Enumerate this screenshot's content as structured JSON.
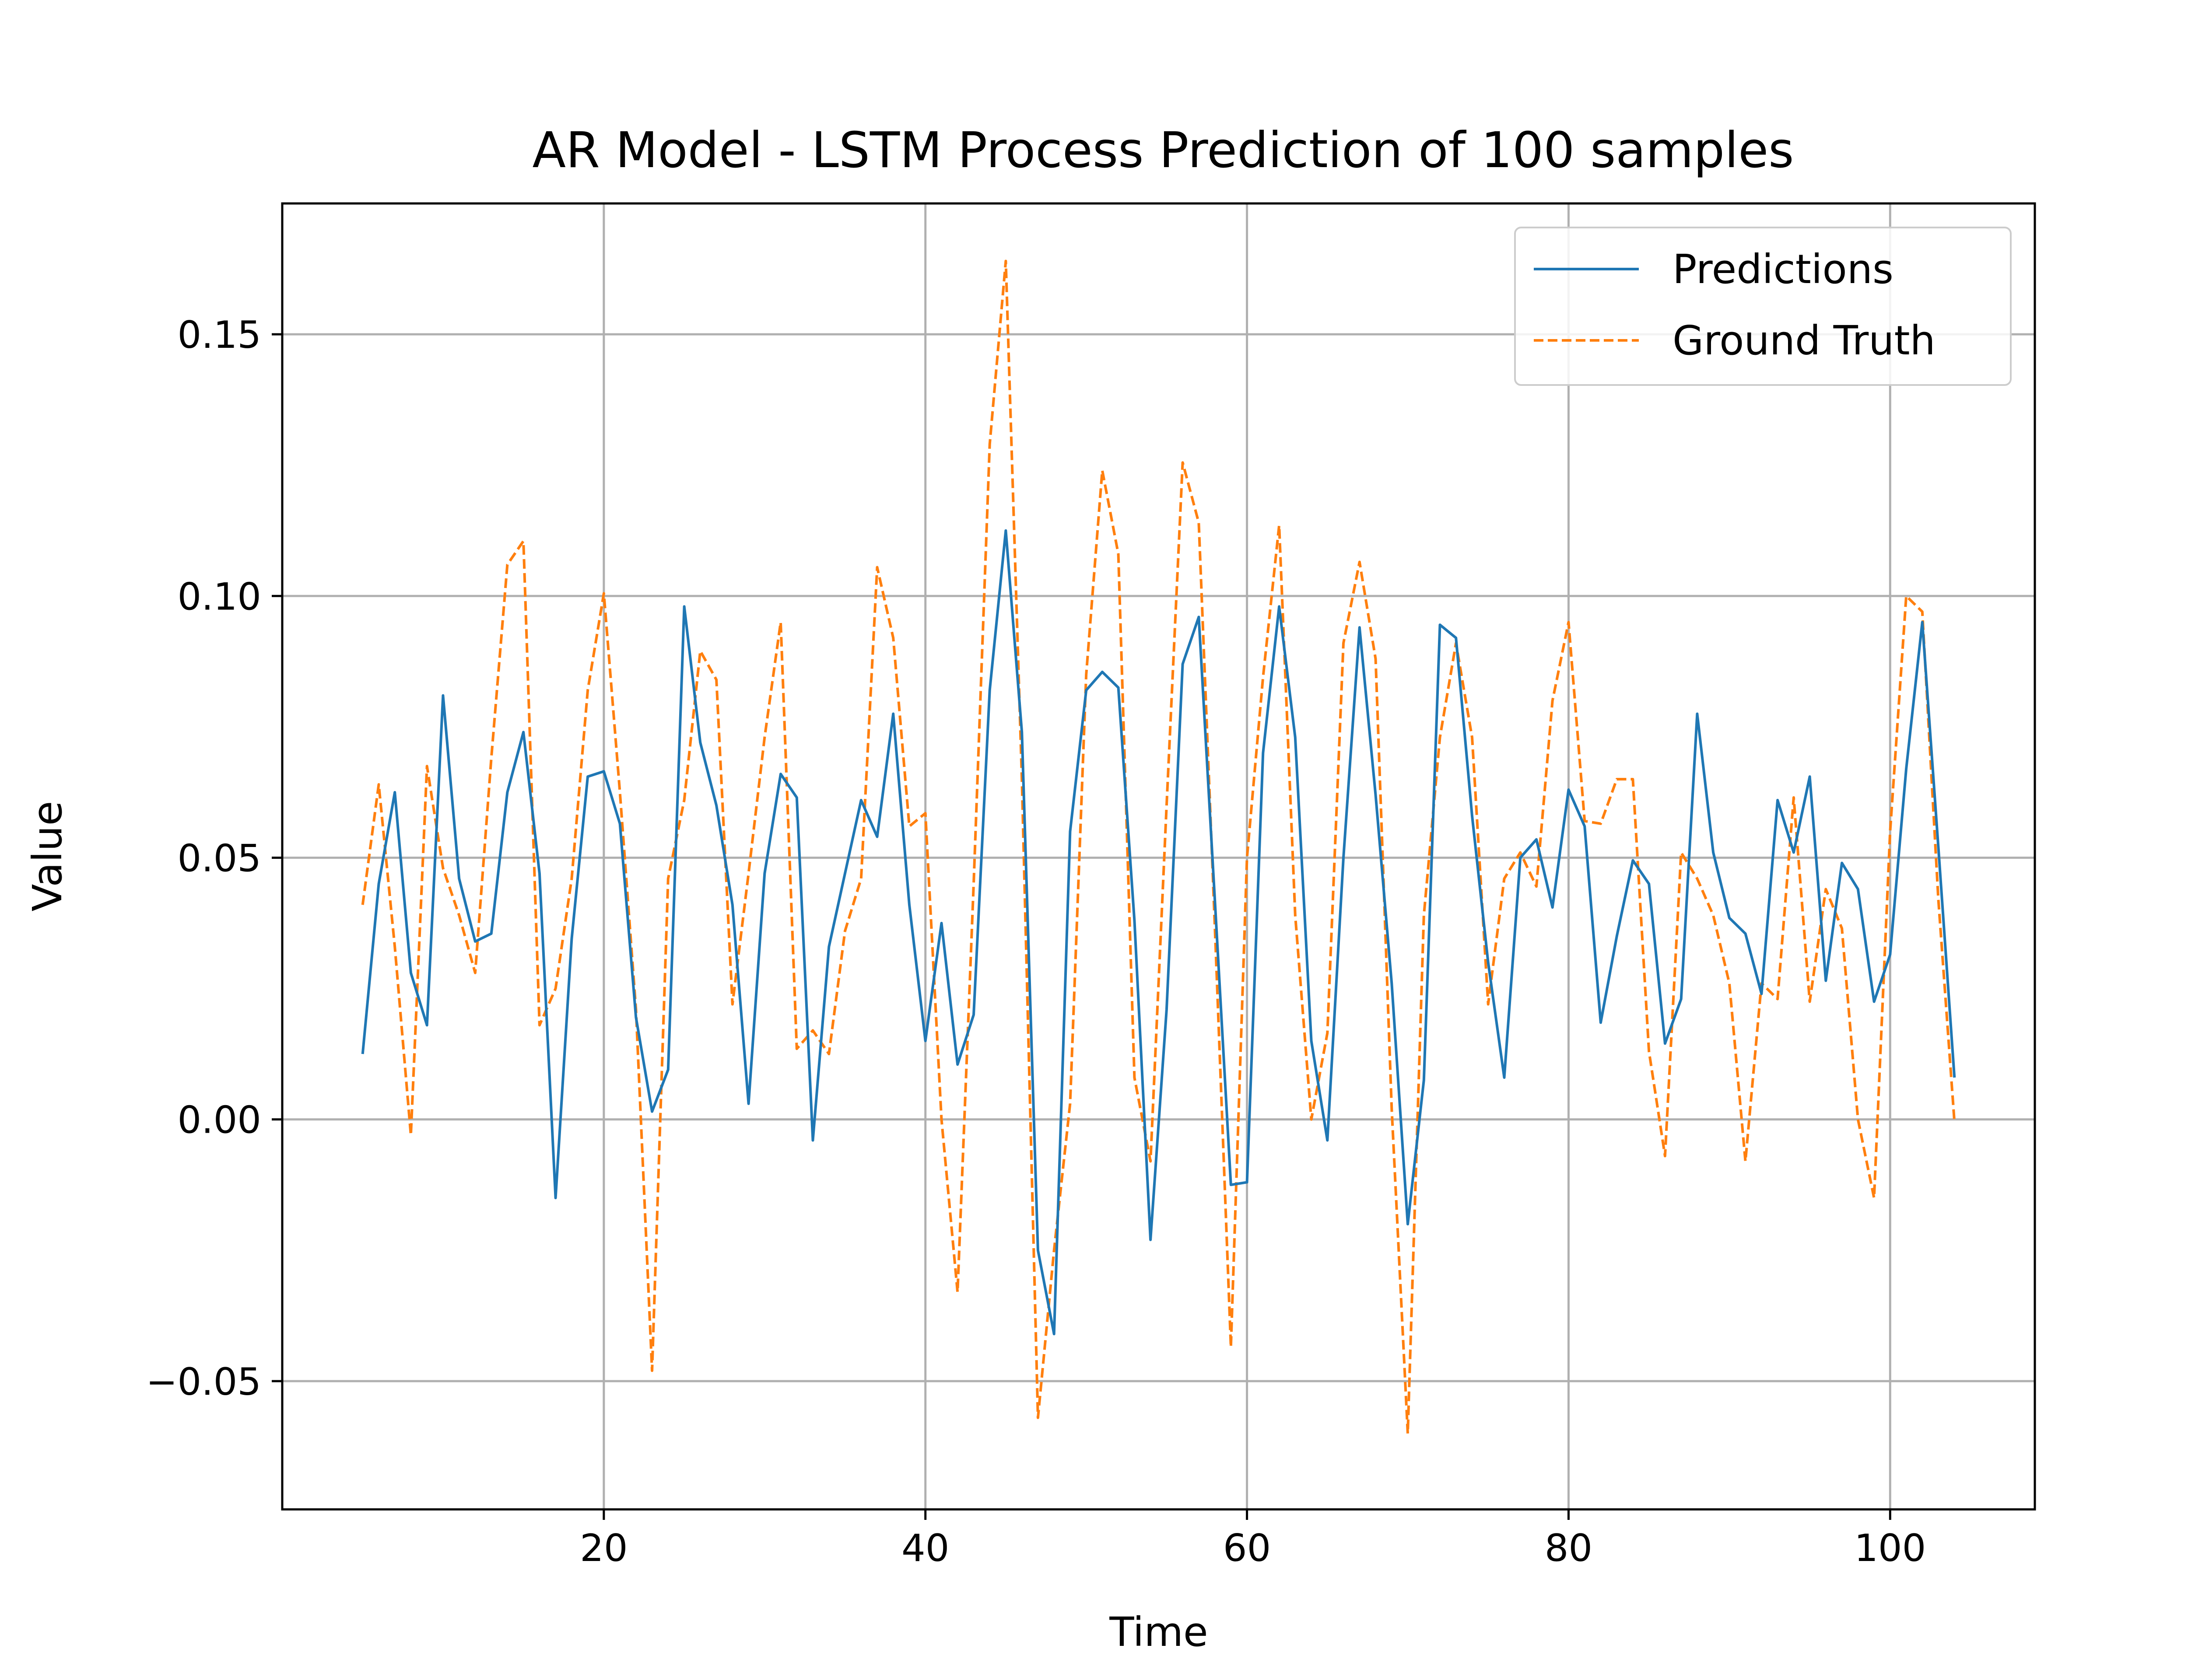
{
  "chart_data": {
    "type": "line",
    "title": "AR Model - LSTM Process Prediction of 100 samples",
    "xlabel": "Time",
    "ylabel": "Value",
    "xlim": [
      0,
      109
    ],
    "ylim": [
      -0.0745,
      0.175
    ],
    "xticks": [
      20,
      40,
      60,
      80,
      100
    ],
    "xtick_labels": [
      "20",
      "40",
      "60",
      "80",
      "100"
    ],
    "yticks": [
      -0.05,
      0.0,
      0.05,
      0.1,
      0.15
    ],
    "ytick_labels": [
      "−0.05",
      "0.00",
      "0.05",
      "0.10",
      "0.15"
    ],
    "grid": true,
    "legend_position": "upper right",
    "x": [
      5,
      6,
      7,
      8,
      9,
      10,
      11,
      12,
      13,
      14,
      15,
      16,
      17,
      18,
      19,
      20,
      21,
      22,
      23,
      24,
      25,
      26,
      27,
      28,
      29,
      30,
      31,
      32,
      33,
      34,
      35,
      36,
      37,
      38,
      39,
      40,
      41,
      42,
      43,
      44,
      45,
      46,
      47,
      48,
      49,
      50,
      51,
      52,
      53,
      54,
      55,
      56,
      57,
      58,
      59,
      60,
      61,
      62,
      63,
      64,
      65,
      66,
      67,
      68,
      69,
      70,
      71,
      72,
      73,
      74,
      75,
      76,
      77,
      78,
      79,
      80,
      81,
      82,
      83,
      84,
      85,
      86,
      87,
      88,
      89,
      90,
      91,
      92,
      93,
      94,
      95,
      96,
      97,
      98,
      99,
      100,
      101,
      102,
      103,
      104
    ],
    "series": [
      {
        "name": "Predictions",
        "color": "#1f77b4",
        "style": "solid",
        "values": [
          0.0125,
          0.045,
          0.0625,
          0.028,
          0.018,
          0.081,
          0.046,
          0.034,
          0.0355,
          0.0625,
          0.074,
          0.047,
          -0.015,
          0.0345,
          0.0655,
          0.0665,
          0.0565,
          0.0195,
          0.0015,
          0.0095,
          0.098,
          0.072,
          0.06,
          0.041,
          0.003,
          0.047,
          0.066,
          0.0615,
          -0.004,
          0.033,
          0.047,
          0.061,
          0.054,
          0.0775,
          0.041,
          0.015,
          0.0375,
          0.0105,
          0.02,
          0.082,
          0.1125,
          0.074,
          -0.025,
          -0.041,
          0.055,
          0.082,
          0.0855,
          0.0825,
          0.038,
          -0.023,
          0.021,
          0.087,
          0.096,
          0.042,
          -0.0125,
          -0.012,
          0.07,
          0.098,
          0.073,
          0.015,
          -0.004,
          0.05,
          0.094,
          0.062,
          0.026,
          -0.02,
          0.0075,
          0.0945,
          0.092,
          0.058,
          0.03,
          0.008,
          0.05,
          0.0535,
          0.0405,
          0.063,
          0.056,
          0.0185,
          0.035,
          0.0495,
          0.045,
          0.0145,
          0.023,
          0.0775,
          0.051,
          0.0385,
          0.0355,
          0.024,
          0.061,
          0.051,
          0.0655,
          0.0265,
          0.049,
          0.044,
          0.0225,
          0.0315,
          0.067,
          0.095,
          0.052,
          0.008
        ]
      },
      {
        "name": "Ground Truth",
        "color": "#ff7f0e",
        "style": "dashed",
        "values": [
          0.041,
          0.064,
          0.033,
          -0.003,
          0.0675,
          0.048,
          0.039,
          0.028,
          0.069,
          0.106,
          0.1105,
          0.018,
          0.025,
          0.046,
          0.082,
          0.1005,
          0.0625,
          0.021,
          -0.048,
          0.046,
          0.061,
          0.0895,
          0.084,
          0.022,
          0.047,
          0.073,
          0.095,
          0.0135,
          0.017,
          0.0125,
          0.036,
          0.046,
          0.1055,
          0.092,
          0.056,
          0.0585,
          0.0,
          -0.033,
          0.045,
          0.129,
          0.164,
          0.065,
          -0.057,
          -0.025,
          0.003,
          0.085,
          0.124,
          0.108,
          0.008,
          -0.008,
          0.06,
          0.1255,
          0.114,
          0.037,
          -0.0435,
          0.05,
          0.0845,
          0.1135,
          0.039,
          0.0,
          0.0165,
          0.091,
          0.1065,
          0.088,
          0.002,
          -0.06,
          0.039,
          0.073,
          0.091,
          0.073,
          0.022,
          0.046,
          0.051,
          0.0445,
          0.08,
          0.095,
          0.057,
          0.0565,
          0.065,
          0.065,
          0.013,
          -0.007,
          0.051,
          0.046,
          0.039,
          0.026,
          -0.008,
          0.026,
          0.023,
          0.0615,
          0.0225,
          0.044,
          0.0365,
          0.0,
          -0.015,
          0.055,
          0.1,
          0.097,
          0.042,
          -0.0005
        ]
      }
    ]
  }
}
